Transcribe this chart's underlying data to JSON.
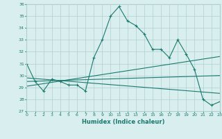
{
  "main_x": [
    0,
    1,
    2,
    3,
    4,
    5,
    6,
    7,
    8,
    9,
    10,
    11,
    12,
    13,
    14,
    15,
    16,
    17,
    18,
    19,
    20,
    21,
    22,
    23
  ],
  "main_y": [
    31.0,
    29.5,
    28.7,
    29.7,
    29.5,
    29.2,
    29.2,
    28.7,
    31.5,
    33.0,
    35.0,
    35.8,
    34.6,
    34.2,
    33.5,
    32.2,
    32.2,
    31.5,
    33.0,
    31.8,
    30.5,
    28.0,
    27.5,
    27.8
  ],
  "line2_x": [
    0,
    23
  ],
  "line2_y": [
    29.1,
    31.6
  ],
  "line3_x": [
    0,
    23
  ],
  "line3_y": [
    29.5,
    30.0
  ],
  "line4_x": [
    0,
    23
  ],
  "line4_y": [
    29.8,
    28.5
  ],
  "color": "#1a7a6e",
  "bg_color": "#d9eeee",
  "grid_color": "#b0cfcf",
  "xlabel": "Humidex (Indice chaleur)",
  "ylim": [
    27,
    36
  ],
  "xlim": [
    0,
    23
  ],
  "yticks": [
    27,
    28,
    29,
    30,
    31,
    32,
    33,
    34,
    35,
    36
  ],
  "xticks": [
    0,
    1,
    2,
    3,
    4,
    5,
    6,
    7,
    8,
    9,
    10,
    11,
    12,
    13,
    14,
    15,
    16,
    17,
    18,
    19,
    20,
    21,
    22,
    23
  ]
}
